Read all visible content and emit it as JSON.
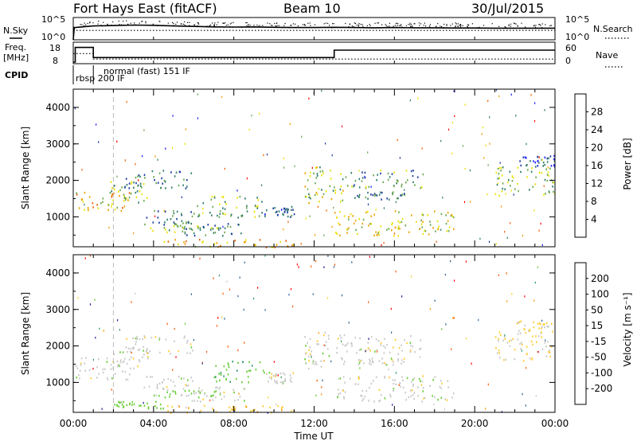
{
  "header": {
    "station": "Fort Hays East (fitACF)",
    "beam": "Beam 10",
    "date": "30/Jul/2015"
  },
  "colors": {
    "power": [
      "#1a1aff",
      "#1a3aa0",
      "#2f7a6a",
      "#6aa84f",
      "#e8e000",
      "#f0a000",
      "#f06000",
      "#ff0000"
    ],
    "velocity": [
      "#ff0000",
      "#ff5500",
      "#ff9900",
      "#ffcc33",
      "#c8c8c8",
      "#66cc33",
      "#339966",
      "#336699",
      "#1a1a99"
    ]
  },
  "chart_data": [
    {
      "type": "line",
      "name": "noise-sky-search",
      "ylabel": "N.Sky",
      "ylabel_right": "N.Search",
      "yticks_left": [
        "10^5",
        "10^0"
      ],
      "yticks_right": [
        "10^5",
        "10^0"
      ],
      "series": [
        {
          "name": "N.Sky",
          "style": "solid",
          "x": [
            0.0,
            0.05,
            0.1,
            1,
            2,
            3,
            4,
            5,
            6,
            7,
            8,
            9,
            10,
            11,
            12,
            13,
            14,
            15,
            16,
            17,
            18,
            19,
            20,
            21,
            22,
            23,
            24
          ],
          "y_frac": [
            0.0,
            0.55,
            0.55,
            0.62,
            0.64,
            0.66,
            0.65,
            0.62,
            0.6,
            0.58,
            0.57,
            0.58,
            0.56,
            0.55,
            0.55,
            0.56,
            0.55,
            0.54,
            0.55,
            0.54,
            0.54,
            0.53,
            0.53,
            0.52,
            0.52,
            0.52,
            0.52
          ]
        },
        {
          "name": "N.Search",
          "style": "dotted",
          "x": [
            0,
            24
          ],
          "y_frac": [
            0.42,
            0.42
          ]
        }
      ]
    },
    {
      "type": "line",
      "name": "frequency-nave",
      "ylabel": "Freq.",
      "ylabel_unit": "[MHz]",
      "ylabel_right": "Nave",
      "yticks_left": [
        "18",
        "8"
      ],
      "yticks_right": [
        "60",
        "0"
      ],
      "series": [
        {
          "name": "Freq.",
          "style": "solid",
          "step": true,
          "x": [
            0.0,
            0.1,
            0.1,
            1.0,
            1.0,
            13.0,
            13.0,
            24.0
          ],
          "y": [
            8.0,
            8.0,
            16.0,
            16.0,
            10.5,
            10.5,
            14.5,
            14.5
          ]
        },
        {
          "name": "Nave",
          "style": "dotted",
          "step": true,
          "x": [
            0.0,
            1.0,
            1.0,
            24.0
          ],
          "y": [
            28,
            28,
            10,
            10
          ]
        }
      ]
    },
    {
      "type": "table",
      "name": "cpid",
      "label": "CPID",
      "segments": [
        {
          "start": 0.0,
          "end": 1.0,
          "text": "rbsp 200 IF"
        },
        {
          "start": 1.0,
          "end": 24.0,
          "text": "normal (fast) 151 IF"
        }
      ]
    },
    {
      "type": "heatmap",
      "name": "power",
      "ylabel": "Slant Range [km]",
      "colorbar_label": "Power [dB]",
      "colorbar_ticks": [
        "4",
        "8",
        "12",
        "16",
        "20",
        "24",
        "28"
      ],
      "zlim": [
        0,
        30
      ],
      "ylim": [
        180,
        4500
      ],
      "yticks": [
        "1000",
        "2000",
        "3000",
        "4000"
      ],
      "patches": [
        {
          "t0": 0.1,
          "t1": 2.8,
          "r0": 1100,
          "r1": 1700,
          "z": 20
        },
        {
          "t0": 1.8,
          "t1": 3.8,
          "r0": 1400,
          "r1": 2000,
          "z": 14
        },
        {
          "t0": 2.5,
          "t1": 6.0,
          "r0": 1800,
          "r1": 2300,
          "z": 10
        },
        {
          "t0": 3.5,
          "t1": 6.0,
          "r0": 800,
          "r1": 1200,
          "z": 10
        },
        {
          "t0": 3.8,
          "t1": 7.5,
          "r0": 600,
          "r1": 800,
          "z": 14
        },
        {
          "t0": 6.0,
          "t1": 9.5,
          "r0": 1000,
          "r1": 1600,
          "z": 14
        },
        {
          "t0": 5.5,
          "t1": 8.5,
          "r0": 500,
          "r1": 900,
          "z": 10
        },
        {
          "t0": 4.5,
          "t1": 11.0,
          "r0": 180,
          "r1": 400,
          "z": 22
        },
        {
          "t0": 9.5,
          "t1": 11.0,
          "r0": 1000,
          "r1": 1300,
          "z": 8
        },
        {
          "t0": 11.5,
          "t1": 13.5,
          "r0": 1400,
          "r1": 2400,
          "z": 16
        },
        {
          "t0": 13.0,
          "t1": 19.0,
          "r0": 500,
          "r1": 1200,
          "z": 18
        },
        {
          "t0": 13.5,
          "t1": 17.5,
          "r0": 1800,
          "r1": 2300,
          "z": 12
        },
        {
          "t0": 14.0,
          "t1": 16.5,
          "r0": 1500,
          "r1": 1700,
          "z": 10
        },
        {
          "t0": 21.0,
          "t1": 24.0,
          "r0": 1600,
          "r1": 2400,
          "z": 14
        },
        {
          "t0": 22.0,
          "t1": 24.0,
          "r0": 2400,
          "r1": 2700,
          "z": 6
        }
      ]
    },
    {
      "type": "heatmap",
      "name": "velocity",
      "ylabel": "Slant Range [km]",
      "colorbar_label": "Velocity [m s⁻¹]",
      "colorbar_ticks": [
        "-200",
        "-100",
        "-50",
        "-15",
        "15",
        "50",
        "100",
        "200"
      ],
      "zlim": [
        -250,
        250
      ],
      "ylim": [
        180,
        4500
      ],
      "yticks": [
        "1000",
        "2000",
        "3000",
        "4000"
      ],
      "xticks": [
        "00:00",
        "04:00",
        "08:00",
        "12:00",
        "16:00",
        "20:00",
        "00:00"
      ],
      "xlim": [
        0,
        24
      ],
      "xlabel": "Time UT",
      "patches": [
        {
          "t0": 0.1,
          "t1": 2.8,
          "r0": 1100,
          "r1": 1700,
          "z": 0
        },
        {
          "t0": 1.8,
          "t1": 3.8,
          "r0": 1400,
          "r1": 2000,
          "z": 0
        },
        {
          "t0": 2.5,
          "t1": 6.0,
          "r0": 1800,
          "r1": 2300,
          "z": 0
        },
        {
          "t0": 3.5,
          "t1": 6.0,
          "r0": 800,
          "r1": 1200,
          "z": 0
        },
        {
          "t0": 3.8,
          "t1": 7.5,
          "r0": 600,
          "r1": 800,
          "z": 30
        },
        {
          "t0": 7.0,
          "t1": 9.5,
          "r0": 1000,
          "r1": 1600,
          "z": 40
        },
        {
          "t0": 5.5,
          "t1": 8.5,
          "r0": 500,
          "r1": 900,
          "z": 0
        },
        {
          "t0": 4.5,
          "t1": 11.0,
          "r0": 180,
          "r1": 400,
          "z": -40
        },
        {
          "t0": 2.0,
          "t1": 4.5,
          "r0": 300,
          "r1": 500,
          "z": 30
        },
        {
          "t0": 9.5,
          "t1": 11.0,
          "r0": 1000,
          "r1": 1300,
          "z": 0
        },
        {
          "t0": 11.5,
          "t1": 13.5,
          "r0": 1400,
          "r1": 2400,
          "z": 0
        },
        {
          "t0": 13.0,
          "t1": 19.0,
          "r0": 500,
          "r1": 1200,
          "z": 0
        },
        {
          "t0": 13.5,
          "t1": 17.5,
          "r0": 1800,
          "r1": 2300,
          "z": 0
        },
        {
          "t0": 14.0,
          "t1": 16.5,
          "r0": 1500,
          "r1": 1700,
          "z": 0
        },
        {
          "t0": 21.0,
          "t1": 24.0,
          "r0": 1600,
          "r1": 2400,
          "z": -20
        },
        {
          "t0": 22.0,
          "t1": 24.0,
          "r0": 2400,
          "r1": 2700,
          "z": -20
        }
      ]
    }
  ]
}
